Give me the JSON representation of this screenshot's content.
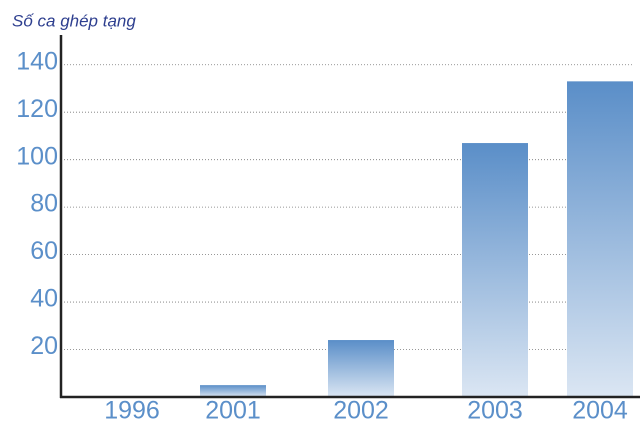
{
  "chart_data": {
    "type": "bar",
    "title": "Số ca ghép tạng",
    "categories": [
      "1996",
      "2001",
      "2002",
      "2003",
      "2004"
    ],
    "values": [
      0,
      5,
      24,
      107,
      133
    ],
    "color": "#5b8fc9",
    "ylim": [
      0,
      150
    ],
    "yticks": [
      20,
      40,
      60,
      80,
      100,
      120,
      140
    ],
    "grid": true
  }
}
